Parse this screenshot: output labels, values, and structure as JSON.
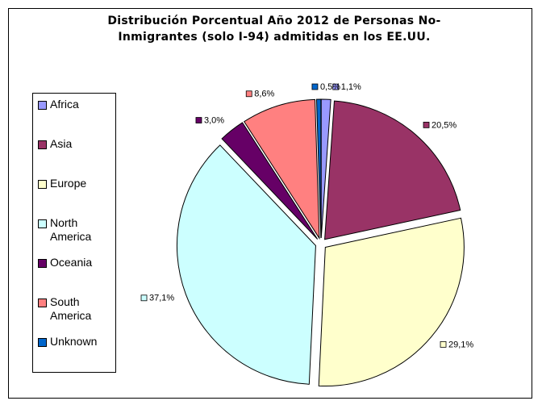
{
  "chart_data": {
    "type": "pie",
    "title": "Distribución Porcentual Año 2012 de Personas No-Inmigrantes (solo I-94) admitidas en los EE.UU.",
    "categories": [
      "Africa",
      "Asia",
      "Europe",
      "North America",
      "Oceania",
      "South America",
      "Unknown"
    ],
    "values": [
      1.1,
      20.5,
      29.1,
      37.1,
      3.0,
      8.6,
      0.5
    ],
    "value_labels": [
      "1,1%",
      "20,5%",
      "29,1%",
      "37,1%",
      "3,0%",
      "8,6%",
      "0,5%"
    ],
    "colors": [
      "#9999ff",
      "#993366",
      "#ffffcc",
      "#ccffff",
      "#660066",
      "#ff8080",
      "#0066cc"
    ],
    "legend": "left"
  }
}
